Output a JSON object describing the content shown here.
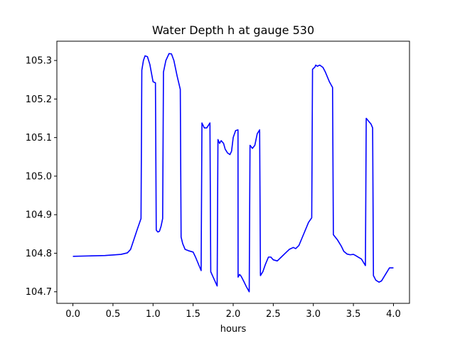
{
  "chart_data": {
    "type": "line",
    "title": "Water Depth h at gauge 530",
    "xlabel": "hours",
    "ylabel": "",
    "xlim": [
      -0.2,
      4.2
    ],
    "ylim": [
      104.67,
      105.35
    ],
    "xticks": [
      0.0,
      0.5,
      1.0,
      1.5,
      2.0,
      2.5,
      3.0,
      3.5,
      4.0
    ],
    "xtick_labels": [
      "0.0",
      "0.5",
      "1.0",
      "1.5",
      "2.0",
      "2.5",
      "3.0",
      "3.5",
      "4.0"
    ],
    "yticks": [
      104.7,
      104.8,
      104.9,
      105.0,
      105.1,
      105.2,
      105.3
    ],
    "ytick_labels": [
      "104.7",
      "104.8",
      "104.9",
      "105.0",
      "105.1",
      "105.2",
      "105.3"
    ],
    "grid": false,
    "line_color": "#0000ff",
    "series": [
      {
        "x": [
          0.0,
          0.2,
          0.4,
          0.6,
          0.68,
          0.72,
          0.76,
          0.8,
          0.85,
          0.86,
          0.88,
          0.9,
          0.93,
          0.96,
          1.0,
          1.03,
          1.04,
          1.06,
          1.08,
          1.1,
          1.12,
          1.13,
          1.16,
          1.2,
          1.23,
          1.26,
          1.3,
          1.34,
          1.35,
          1.37,
          1.4,
          1.45,
          1.5,
          1.53,
          1.6,
          1.61,
          1.64,
          1.67,
          1.71,
          1.72,
          1.75,
          1.8,
          1.81,
          1.83,
          1.85,
          1.88,
          1.9,
          1.93,
          1.96,
          1.98,
          2.0,
          2.03,
          2.06,
          2.061,
          2.08,
          2.1,
          2.13,
          2.16,
          2.2,
          2.21,
          2.24,
          2.27,
          2.3,
          2.33,
          2.34,
          2.37,
          2.4,
          2.44,
          2.47,
          2.5,
          2.55,
          2.6,
          2.65,
          2.7,
          2.75,
          2.78,
          2.82,
          2.86,
          2.9,
          2.94,
          2.98,
          2.99,
          3.02,
          3.03,
          3.05,
          3.08,
          3.1,
          3.12,
          3.15,
          3.2,
          3.24,
          3.25,
          3.3,
          3.35,
          3.38,
          3.42,
          3.46,
          3.5,
          3.52,
          3.56,
          3.6,
          3.65,
          3.66,
          3.7,
          3.72,
          3.74,
          3.75,
          3.78,
          3.82,
          3.85,
          3.9,
          3.95,
          4.0
        ],
        "y": [
          104.792,
          104.793,
          104.794,
          104.797,
          104.801,
          104.81,
          104.835,
          104.86,
          104.89,
          105.275,
          105.3,
          105.312,
          105.31,
          105.29,
          105.245,
          105.242,
          104.86,
          104.855,
          104.857,
          104.87,
          104.89,
          105.27,
          105.3,
          105.318,
          105.317,
          105.3,
          105.26,
          105.225,
          104.842,
          104.825,
          104.81,
          104.806,
          104.803,
          104.79,
          104.755,
          105.138,
          105.125,
          105.125,
          105.138,
          104.752,
          104.738,
          104.715,
          105.095,
          105.085,
          105.092,
          105.085,
          105.07,
          105.06,
          105.056,
          105.065,
          105.1,
          105.118,
          105.12,
          104.738,
          104.745,
          104.74,
          104.728,
          104.715,
          104.7,
          105.08,
          105.072,
          105.08,
          105.11,
          105.12,
          104.742,
          104.752,
          104.77,
          104.79,
          104.79,
          104.783,
          104.78,
          104.79,
          104.8,
          104.81,
          104.815,
          104.812,
          104.82,
          104.84,
          104.86,
          104.88,
          104.892,
          105.277,
          105.283,
          105.288,
          105.285,
          105.288,
          105.285,
          105.282,
          105.27,
          105.245,
          105.23,
          104.848,
          104.835,
          104.818,
          104.805,
          104.798,
          104.796,
          104.797,
          104.795,
          104.79,
          104.785,
          104.768,
          105.15,
          105.14,
          105.135,
          105.125,
          104.742,
          104.73,
          104.725,
          104.728,
          104.745,
          104.762,
          104.762
        ]
      }
    ]
  }
}
